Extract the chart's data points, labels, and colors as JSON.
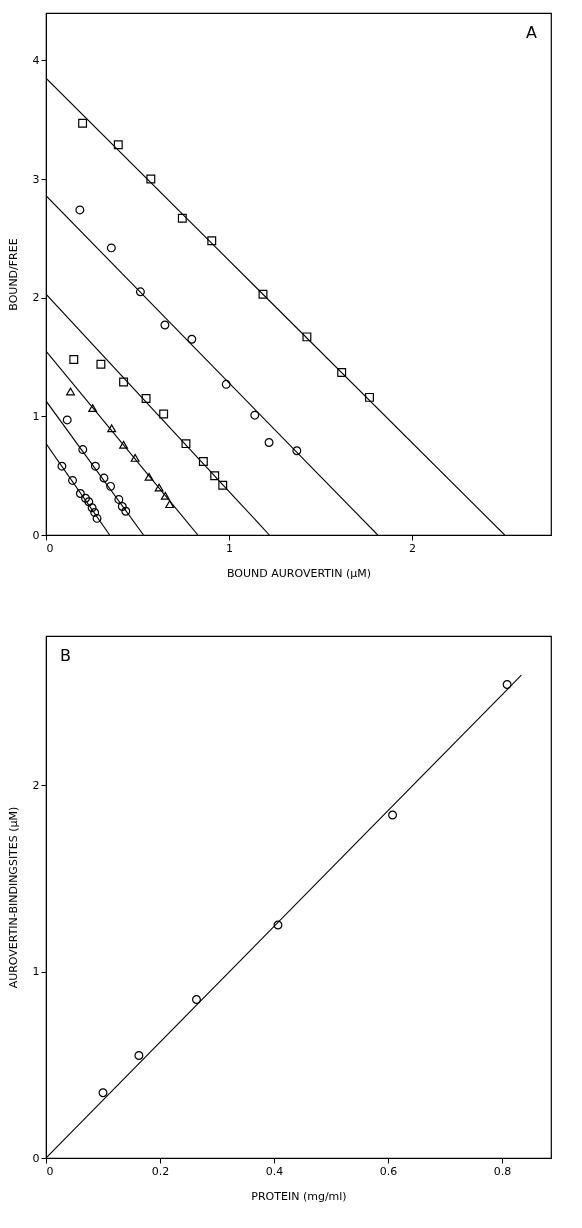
{
  "chart_data": [
    {
      "type": "scatter",
      "xlabel": "BOUND AUROVERTIN (µM)",
      "ylabel": "BOUND/FREE",
      "annotations": [
        "A"
      ],
      "xlim": [
        0,
        2.76
      ],
      "ylim": [
        0,
        4.4
      ],
      "xticks": [
        0,
        1,
        2
      ],
      "yticks": [
        0,
        1,
        2,
        3,
        4
      ],
      "grid": false,
      "series": [
        {
          "type": "scatter",
          "marker": "square",
          "color": "#000000",
          "x": [
            0.2,
            0.395,
            0.573,
            0.745,
            0.906,
            1.186,
            1.426,
            1.616,
            1.768
          ],
          "values": [
            3.47,
            3.29,
            3.0,
            2.67,
            2.48,
            2.03,
            1.67,
            1.37,
            1.16
          ]
        },
        {
          "type": "line",
          "color": "#000000",
          "x": [
            0,
            2.507
          ],
          "values": [
            3.85,
            0
          ]
        },
        {
          "type": "scatter",
          "marker": "circle",
          "color": "#000000",
          "x": [
            0.185,
            0.357,
            0.516,
            0.65,
            0.797,
            0.985,
            1.141,
            1.219,
            1.371
          ],
          "values": [
            2.74,
            2.42,
            2.05,
            1.77,
            1.65,
            1.27,
            1.01,
            0.78,
            0.71
          ]
        },
        {
          "type": "line",
          "color": "#000000",
          "x": [
            0,
            1.813
          ],
          "values": [
            2.86,
            0
          ]
        },
        {
          "type": "scatter",
          "marker": "square",
          "color": "#000000",
          "x": [
            0.152,
            0.3,
            0.424,
            0.547,
            0.643,
            0.765,
            0.86,
            0.922,
            0.966
          ],
          "values": [
            1.48,
            1.44,
            1.29,
            1.15,
            1.02,
            0.77,
            0.62,
            0.5,
            0.42
          ]
        },
        {
          "type": "line",
          "color": "#000000",
          "x": [
            0,
            1.221
          ],
          "values": [
            2.03,
            0
          ]
        },
        {
          "type": "scatter",
          "marker": "triangle",
          "color": "#000000",
          "x": [
            0.134,
            0.255,
            0.359,
            0.424,
            0.487,
            0.563,
            0.618,
            0.652,
            0.676
          ],
          "values": [
            1.21,
            1.07,
            0.9,
            0.76,
            0.65,
            0.49,
            0.4,
            0.33,
            0.26
          ]
        },
        {
          "type": "line",
          "color": "#000000",
          "x": [
            0,
            0.83
          ],
          "values": [
            1.55,
            0
          ]
        },
        {
          "type": "scatter",
          "marker": "circle",
          "color": "#000000",
          "x": [
            0.116,
            0.201,
            0.27,
            0.317,
            0.353,
            0.398,
            0.417,
            0.436
          ],
          "values": [
            0.97,
            0.72,
            0.58,
            0.48,
            0.41,
            0.3,
            0.24,
            0.2
          ]
        },
        {
          "type": "line",
          "color": "#000000",
          "x": [
            0,
            0.533
          ],
          "values": [
            1.13,
            0
          ]
        },
        {
          "type": "scatter",
          "marker": "circle",
          "color": "#000000",
          "x": [
            0.087,
            0.145,
            0.188,
            0.216,
            0.234,
            0.252,
            0.266,
            0.279
          ],
          "values": [
            0.58,
            0.46,
            0.35,
            0.31,
            0.28,
            0.23,
            0.19,
            0.14
          ]
        },
        {
          "type": "line",
          "color": "#000000",
          "x": [
            0,
            0.348
          ],
          "values": [
            0.77,
            0
          ]
        }
      ]
    },
    {
      "type": "scatter",
      "xlabel": "PROTEIN (mg/ml)",
      "ylabel": "AUROVERTIN-BINDINGSITES (µM)",
      "annotations": [
        "B"
      ],
      "xlim": [
        0,
        0.886
      ],
      "ylim": [
        0,
        2.8
      ],
      "xticks": [
        0,
        0.2,
        0.4,
        0.6,
        0.8
      ],
      "yticks": [
        0,
        1,
        2
      ],
      "grid": false,
      "series": [
        {
          "type": "scatter",
          "marker": "circle",
          "color": "#000000",
          "x": [
            0.1,
            0.163,
            0.264,
            0.407,
            0.608,
            0.809
          ],
          "values": [
            0.35,
            0.55,
            0.85,
            1.25,
            1.84,
            2.54
          ]
        },
        {
          "type": "line",
          "color": "#000000",
          "x": [
            0,
            0.834
          ],
          "values": [
            0,
            2.59
          ]
        }
      ]
    }
  ]
}
